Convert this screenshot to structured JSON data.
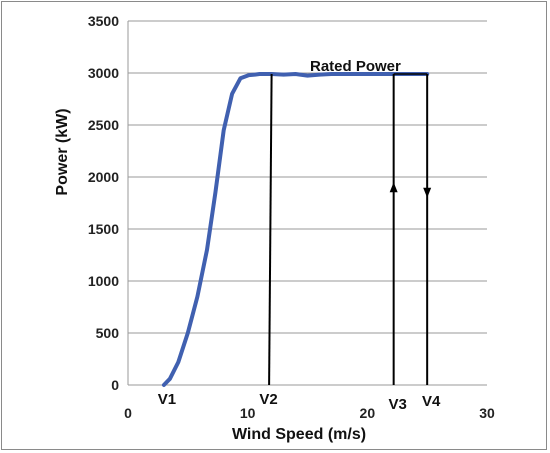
{
  "chart_data": {
    "type": "line",
    "title": "",
    "xlabel": "Wind  Speed (m/s)",
    "ylabel": "Power  (kW)",
    "xlim": [
      0,
      30
    ],
    "ylim": [
      0,
      3500
    ],
    "x_ticks": [
      "0",
      "10",
      "20",
      "30"
    ],
    "y_ticks": [
      "0",
      "500",
      "1000",
      "1500",
      "2000",
      "2500",
      "3000",
      "3500"
    ],
    "grid": "horizontal",
    "legend": "none",
    "line_color": "#4060b0",
    "series": [
      {
        "x": [
          3.0,
          3.5,
          4.2,
          5.0,
          5.8,
          6.6,
          7.3,
          8.0,
          8.7,
          9.4,
          10.1,
          10.6,
          11.0,
          11.5,
          12.0,
          13.0,
          14.0,
          15.0,
          16.0,
          17.0,
          18.0,
          19.0,
          20.0,
          21.0,
          22.0,
          23.0,
          24.0,
          25.0
        ],
        "y": [
          0,
          60,
          220,
          500,
          850,
          1300,
          1850,
          2450,
          2800,
          2950,
          2980,
          2985,
          2990,
          2990,
          2990,
          2985,
          2990,
          2975,
          2985,
          2990,
          2990,
          2990,
          2990,
          2990,
          2990,
          2990,
          2990,
          2990
        ]
      }
    ],
    "annotations": {
      "rated_power_label": "Rated Power",
      "v1": {
        "label": "V1",
        "x": 3.0
      },
      "v2": {
        "label": "V2",
        "x": 12.0
      },
      "v3": {
        "label": "V3",
        "x": 22.2
      },
      "v4": {
        "label": "V4",
        "x": 25.0
      }
    }
  }
}
